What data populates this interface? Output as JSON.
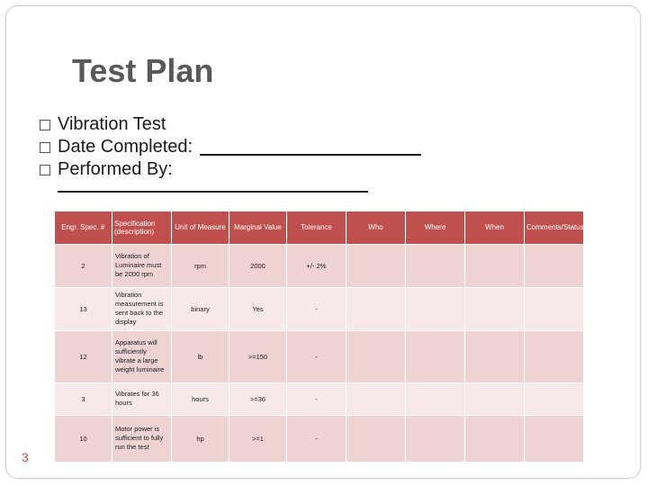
{
  "slide": {
    "title": "Test Plan",
    "bullets": [
      {
        "text": "Vibration Test"
      },
      {
        "text": "Date Completed:"
      },
      {
        "text": "Performed By:"
      }
    ],
    "page_number": "3"
  },
  "table": {
    "headers": [
      "Engr. Spec. #",
      "Specification (description)",
      "Unit of Measure",
      "Marginal Value",
      "Tolerance",
      "Who",
      "Where",
      "When",
      "Comments/Status"
    ],
    "rows": [
      {
        "spec": "2",
        "desc": "Vibration of Luminaire must be 2000 rpm",
        "unit": "rpm",
        "marginal": "2000",
        "tolerance": "+/- 2%",
        "who": "",
        "where": "",
        "when": "",
        "comments": ""
      },
      {
        "spec": "13",
        "desc": "Vibration measurement is sent back to the display",
        "unit": "binary",
        "marginal": "Yes",
        "tolerance": "-",
        "who": "",
        "where": "",
        "when": "",
        "comments": ""
      },
      {
        "spec": "12",
        "desc": "Apparatus will sufficiently vibrate a large weight luminaire",
        "unit": "lb",
        "marginal": ">=150",
        "tolerance": "-",
        "who": "",
        "where": "",
        "when": "",
        "comments": ""
      },
      {
        "spec": "3",
        "desc": "Vibrates for 36 hours",
        "unit": "hours",
        "marginal": ">=36",
        "tolerance": "-",
        "who": "",
        "where": "",
        "when": "",
        "comments": ""
      },
      {
        "spec": "10",
        "desc": "Motor power is sufficient to fully run the test",
        "unit": "hp",
        "marginal": ">=1",
        "tolerance": "-",
        "who": "",
        "where": "",
        "when": "",
        "comments": ""
      }
    ]
  },
  "colors": {
    "accent": "#c0504d",
    "row_odd": "#efd3d2",
    "row_even": "#f7e9e9",
    "title": "#595959"
  }
}
